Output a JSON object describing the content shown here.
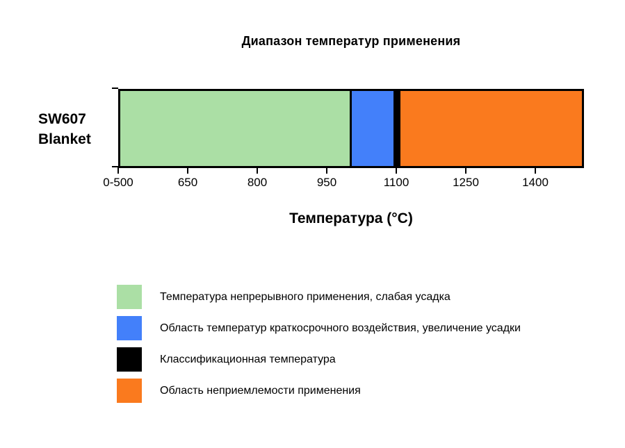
{
  "title": "Диапазон температур применения",
  "category_label": {
    "line1": "SW607",
    "line2": "Blanket"
  },
  "axis": {
    "label": "Температура (°C)"
  },
  "colors": {
    "continuous_use_green": "#abdfa5",
    "short_term_blue": "#4380fa",
    "classification_black": "#000000",
    "unacceptable_orange": "#fa7a1e",
    "border": "#000000",
    "background": "#ffffff"
  },
  "legend": [
    {
      "name": "continuous-use",
      "color": "#abdfa5",
      "label": "Температура непрерывного применения, слабая усадка"
    },
    {
      "name": "short-term-exposure",
      "color": "#4380fa",
      "label": "Область температур краткосрочного воздействия, увеличение усадки"
    },
    {
      "name": "classification-temperature",
      "color": "#000000",
      "label": "Классификационная температура"
    },
    {
      "name": "unacceptable-region",
      "color": "#fa7a1e",
      "label": "Область неприемлемости применения"
    }
  ],
  "chart_data": {
    "type": "bar",
    "orientation": "horizontal",
    "stacked": true,
    "title": "Диапазон температур применения",
    "xlabel": "Температура (°C)",
    "category": "SW607 Blanket",
    "classification_temperature_c": 1100,
    "x_axis": {
      "tick_labels": [
        "0-500",
        "650",
        "800",
        "950",
        "1100",
        "1250",
        "1400"
      ],
      "tick_values": [
        500,
        650,
        800,
        950,
        1100,
        1250,
        1400
      ],
      "axis_min": 500,
      "axis_max": 1505,
      "note": "first tick position compresses the range 0-500 °C"
    },
    "segments": [
      {
        "name": "continuous-use",
        "label": "Температура непрерывного применения, слабая усадка",
        "color": "#abdfa5",
        "from_c": 0,
        "to_c": 1000
      },
      {
        "name": "short-term-exposure",
        "label": "Область температур краткосрочного воздействия, увеличение усадки",
        "color": "#4380fa",
        "from_c": 1000,
        "to_c": 1095
      },
      {
        "name": "classification-temperature",
        "label": "Классификационная температура",
        "color": "#000000",
        "from_c": 1095,
        "to_c": 1110
      },
      {
        "name": "unacceptable-region",
        "label": "Область неприемлемости применения",
        "color": "#fa7a1e",
        "from_c": 1110,
        "to_c": 1505
      }
    ]
  }
}
